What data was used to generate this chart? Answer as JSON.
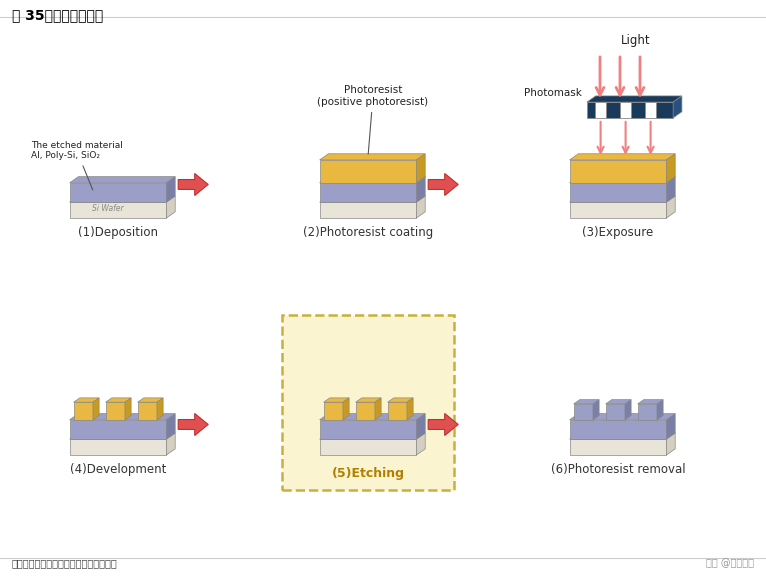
{
  "title": "图 35：光刻技术图示",
  "source": "资料来源：薮东西内参，天风证券研究所",
  "watermark": "头条 @未来智库",
  "bg_color": "#ffffff",
  "title_color": "#000000",
  "source_color": "#444444",
  "text_dark": "#333333",
  "steps": [
    {
      "label": "(1)Deposition",
      "col": 0,
      "row": 0
    },
    {
      "label": "(2)Photoresist coating",
      "col": 1,
      "row": 0
    },
    {
      "label": "(3)Exposure",
      "col": 2,
      "row": 0
    },
    {
      "label": "(4)Development",
      "col": 0,
      "row": 1
    },
    {
      "label": "(5)Etching",
      "col": 1,
      "row": 1
    },
    {
      "label": "(6)Photoresist removal",
      "col": 2,
      "row": 1
    }
  ],
  "colors": {
    "wafer_base": "#e8e4d8",
    "wafer_side": "#d4cfc0",
    "si_layer": "#9b9fc8",
    "si_side": "#7a7fa8",
    "photoresist": "#e8b840",
    "photoresist_side": "#c89a20",
    "photomask_dark": "#1a3a5c",
    "photomask_light": "#2a5080",
    "arrow_fill": "#e05050",
    "arrow_edge": "#c03030",
    "light_arrow": "#f08080",
    "etching_bg": "#faf5d0",
    "etching_border": "#c8b040",
    "text_dark": "#333333",
    "text_gray": "#888888",
    "label_etching": "#b08000"
  }
}
